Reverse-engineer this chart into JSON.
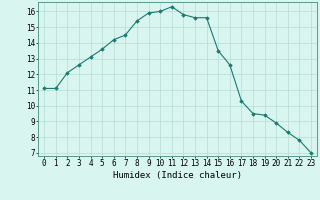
{
  "x": [
    0,
    1,
    2,
    3,
    4,
    5,
    6,
    7,
    8,
    9,
    10,
    11,
    12,
    13,
    14,
    15,
    16,
    17,
    18,
    19,
    20,
    21,
    22,
    23
  ],
  "y": [
    11.1,
    11.1,
    12.1,
    12.6,
    13.1,
    13.6,
    14.2,
    14.5,
    15.4,
    15.9,
    16.0,
    16.3,
    15.8,
    15.6,
    15.6,
    13.5,
    12.6,
    10.3,
    9.5,
    9.4,
    8.9,
    8.3,
    7.8,
    7.0
  ],
  "line_color": "#1a7a6e",
  "marker": "D",
  "markersize": 1.8,
  "bg_color": "#d8f5f0",
  "grid_color": "#b8dcd6",
  "xlabel": "Humidex (Indice chaleur)",
  "xlim": [
    -0.5,
    23.5
  ],
  "ylim": [
    6.8,
    16.6
  ],
  "yticks": [
    7,
    8,
    9,
    10,
    11,
    12,
    13,
    14,
    15,
    16
  ],
  "xticks": [
    0,
    1,
    2,
    3,
    4,
    5,
    6,
    7,
    8,
    9,
    10,
    11,
    12,
    13,
    14,
    15,
    16,
    17,
    18,
    19,
    20,
    21,
    22,
    23
  ],
  "label_fontsize": 6.5,
  "tick_fontsize": 5.5
}
